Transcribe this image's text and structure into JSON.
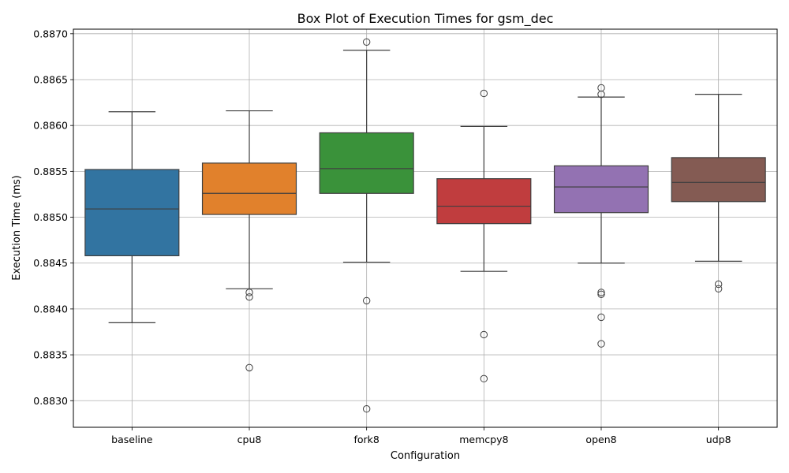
{
  "chart_data": {
    "type": "box",
    "title": "Box Plot of Execution Times for gsm_dec",
    "xlabel": "Configuration",
    "ylabel": "Execution Time (ms)",
    "ylim": [
      0.88271,
      0.88705
    ],
    "yticks": [
      "0.8830",
      "0.8835",
      "0.8840",
      "0.8845",
      "0.8850",
      "0.8855",
      "0.8860",
      "0.8865",
      "0.8870"
    ],
    "grid": true,
    "categories": [
      "baseline",
      "cpu8",
      "fork8",
      "memcpy8",
      "open8",
      "udp8"
    ],
    "boxes": [
      {
        "name": "baseline",
        "color": "#3274a1",
        "whisker_low": 0.88385,
        "q1": 0.88458,
        "median": 0.88509,
        "q3": 0.88552,
        "whisker_high": 0.88615,
        "outliers": []
      },
      {
        "name": "cpu8",
        "color": "#e1812c",
        "whisker_low": 0.88422,
        "q1": 0.88503,
        "median": 0.88526,
        "q3": 0.88559,
        "whisker_high": 0.88616,
        "outliers": [
          0.88418,
          0.88413,
          0.88336
        ]
      },
      {
        "name": "fork8",
        "color": "#3a923a",
        "whisker_low": 0.88451,
        "q1": 0.88526,
        "median": 0.88553,
        "q3": 0.88592,
        "whisker_high": 0.88682,
        "outliers": [
          0.88691,
          0.88409,
          0.88291
        ]
      },
      {
        "name": "memcpy8",
        "color": "#c03d3e",
        "whisker_low": 0.88441,
        "q1": 0.88493,
        "median": 0.88512,
        "q3": 0.88542,
        "whisker_high": 0.88599,
        "outliers": [
          0.88635,
          0.88372,
          0.88324
        ]
      },
      {
        "name": "open8",
        "color": "#9372b2",
        "whisker_low": 0.8845,
        "q1": 0.88505,
        "median": 0.88533,
        "q3": 0.88556,
        "whisker_high": 0.88631,
        "outliers": [
          0.88641,
          0.88634,
          0.88418,
          0.88416,
          0.88391,
          0.88362
        ]
      },
      {
        "name": "udp8",
        "color": "#845b53",
        "whisker_low": 0.88452,
        "q1": 0.88517,
        "median": 0.88538,
        "q3": 0.88565,
        "whisker_high": 0.88634,
        "outliers": [
          0.88427,
          0.88422
        ]
      }
    ]
  }
}
